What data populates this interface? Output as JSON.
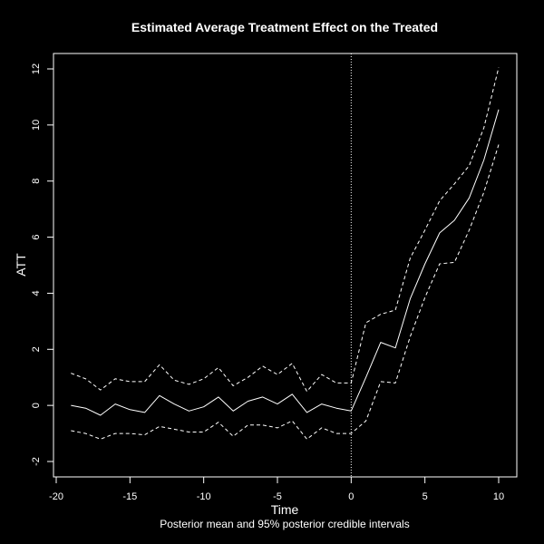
{
  "chart_data": {
    "type": "line",
    "title": "Estimated Average Treatment Effect on the Treated",
    "xlabel": "Time",
    "ylabel": "ATT",
    "caption": "Posterior mean and 95% posterior credible intervals",
    "xlim": [
      -20,
      10
    ],
    "ylim": [
      -2,
      12
    ],
    "xticks": [
      -20,
      -15,
      -10,
      -5,
      0,
      5,
      10
    ],
    "yticks": [
      -2,
      0,
      2,
      4,
      6,
      8,
      10,
      12
    ],
    "xtick_labels": [
      "-20",
      "-15",
      "-10",
      "-5",
      "0",
      "5",
      "10"
    ],
    "ytick_labels": [
      "-2",
      "0",
      "2",
      "4",
      "6",
      "8",
      "10",
      "12"
    ],
    "treatment_line_x": 0,
    "grid": false,
    "x": [
      -19,
      -18,
      -17,
      -16,
      -15,
      -14,
      -13,
      -12,
      -11,
      -10,
      -9,
      -8,
      -7,
      -6,
      -5,
      -4,
      -3,
      -2,
      -1,
      0,
      1,
      2,
      3,
      4,
      5,
      6,
      7,
      8,
      9,
      10
    ],
    "series": [
      {
        "style": "dashed",
        "values": [
          1.15,
          0.95,
          0.55,
          0.95,
          0.85,
          0.85,
          1.45,
          0.9,
          0.75,
          0.95,
          1.35,
          0.7,
          1.0,
          1.4,
          1.1,
          1.5,
          0.5,
          1.1,
          0.8,
          0.8,
          2.95,
          3.25,
          3.4,
          5.25,
          6.25,
          7.3,
          7.9,
          8.55,
          9.9,
          12.05
        ]
      },
      {
        "style": "solid",
        "values": [
          0.0,
          -0.1,
          -0.35,
          0.05,
          -0.15,
          -0.25,
          0.35,
          0.05,
          -0.2,
          -0.05,
          0.3,
          -0.2,
          0.15,
          0.3,
          0.05,
          0.4,
          -0.25,
          0.05,
          -0.1,
          -0.2,
          1.0,
          2.25,
          2.05,
          3.8,
          5.05,
          6.15,
          6.6,
          7.4,
          8.75,
          10.55
        ]
      },
      {
        "style": "dashed",
        "values": [
          -0.9,
          -1.0,
          -1.2,
          -1.0,
          -1.0,
          -1.05,
          -0.75,
          -0.85,
          -0.95,
          -0.95,
          -0.6,
          -1.1,
          -0.7,
          -0.7,
          -0.8,
          -0.55,
          -1.2,
          -0.8,
          -1.0,
          -1.0,
          -0.55,
          0.85,
          0.8,
          2.45,
          3.85,
          5.05,
          5.1,
          6.25,
          7.6,
          9.3
        ]
      }
    ]
  }
}
